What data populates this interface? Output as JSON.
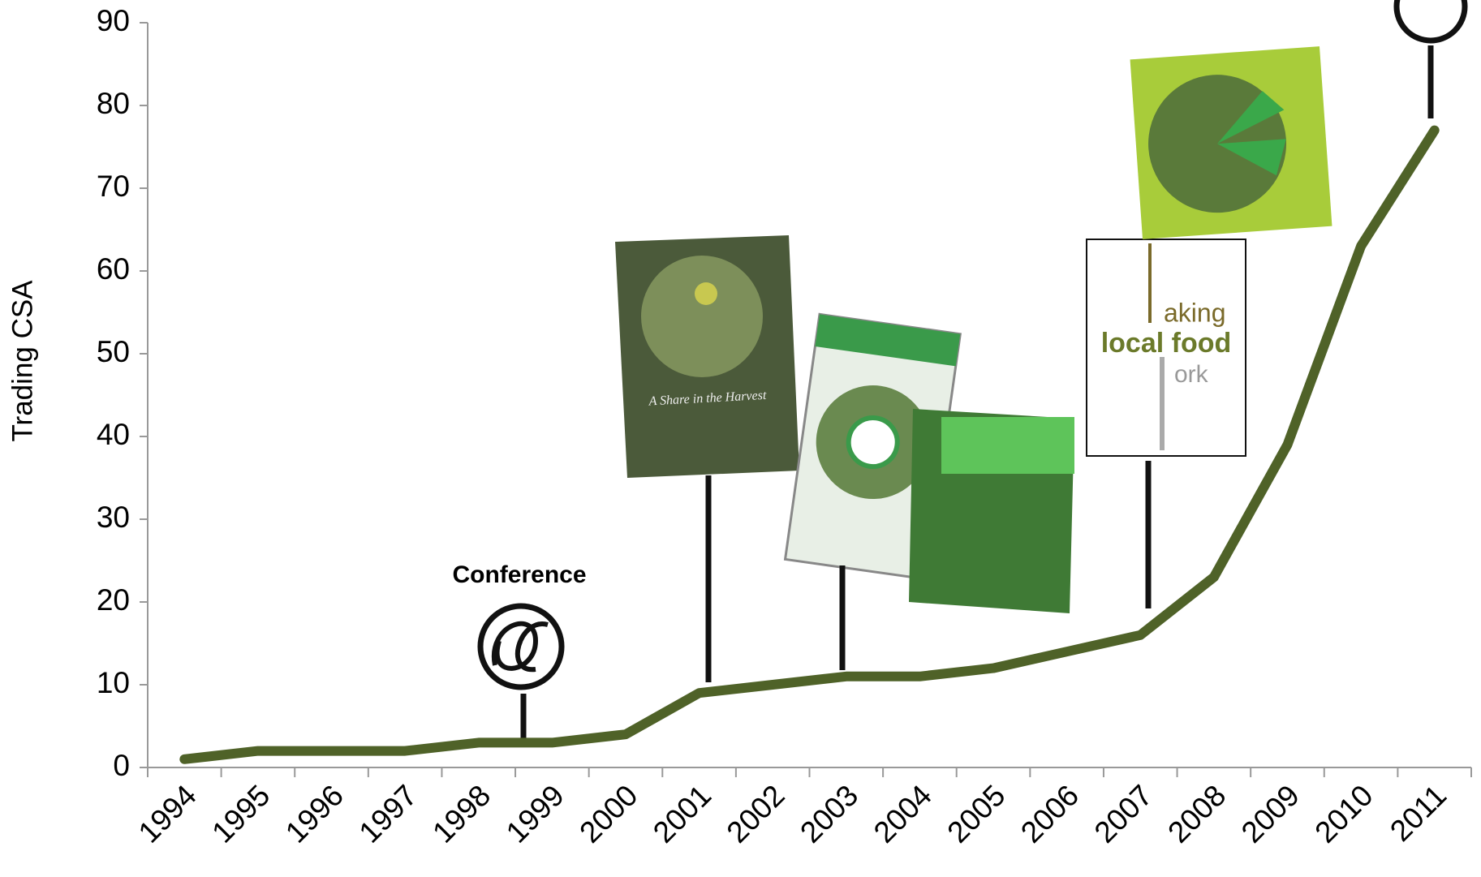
{
  "chart_data": {
    "type": "line",
    "y_label": "Trading CSA",
    "categories": [
      "1994",
      "1995",
      "1996",
      "1997",
      "1998",
      "1999",
      "2000",
      "2001",
      "2002",
      "2003",
      "2004",
      "2005",
      "2006",
      "2007",
      "2008",
      "2009",
      "2010",
      "2011"
    ],
    "values": [
      1,
      2,
      2,
      2,
      3,
      3,
      4,
      9,
      10,
      11,
      11,
      12,
      14,
      16,
      23,
      39,
      63,
      77
    ],
    "color": "#4f6228",
    "ylim": [
      0,
      90
    ],
    "yticks": [
      0,
      10,
      20,
      30,
      40,
      50,
      60,
      70,
      80,
      90
    ],
    "grid": false,
    "annotations": [
      "Conference",
      "A Share in the Harvest",
      "aking",
      "local food",
      "ork"
    ]
  }
}
